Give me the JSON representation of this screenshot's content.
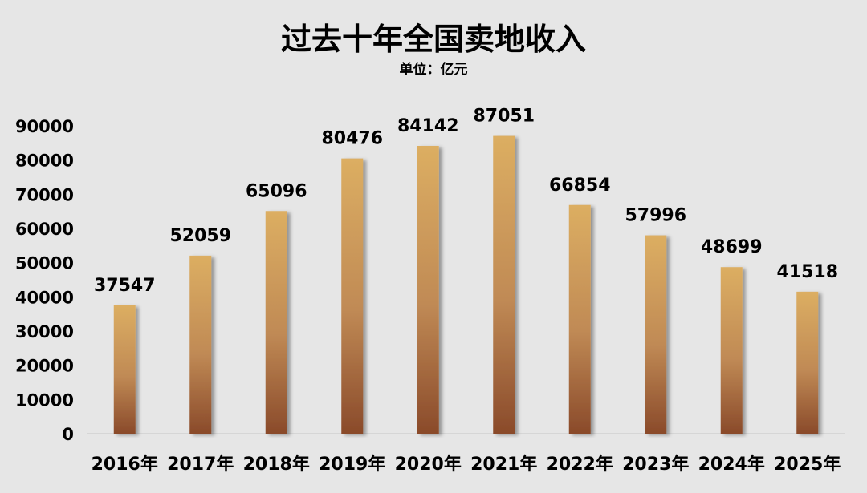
{
  "chart_data": {
    "type": "bar",
    "title": "过去十年全国卖地收入",
    "subtitle": "单位：亿元",
    "categories": [
      "2016年",
      "2017年",
      "2018年",
      "2019年",
      "2020年",
      "2021年",
      "2022年",
      "2023年",
      "2024年",
      "2025年"
    ],
    "values": [
      37547,
      52059,
      65096,
      80476,
      84142,
      87051,
      66854,
      57996,
      48699,
      41518
    ],
    "ylim": [
      0,
      90000
    ],
    "yticks": [
      0,
      10000,
      20000,
      30000,
      40000,
      50000,
      60000,
      70000,
      80000,
      90000
    ],
    "grid": false,
    "legend": "none",
    "colors": {
      "bar_top": "#dcae62",
      "bar_bottom": "#8a4a2a",
      "background": "#e6e6e6"
    }
  }
}
